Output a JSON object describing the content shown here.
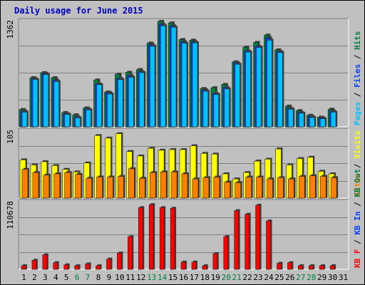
{
  "chart_data": {
    "type": "bar",
    "title": "Daily usage for June 2015",
    "categories": [
      "1",
      "2",
      "3",
      "4",
      "5",
      "6",
      "7",
      "8",
      "9",
      "10",
      "11",
      "12",
      "13",
      "14",
      "15",
      "16",
      "17",
      "18",
      "19",
      "20",
      "21",
      "22",
      "23",
      "24",
      "25",
      "26",
      "27",
      "28",
      "29",
      "30",
      "31"
    ],
    "weekend_days": [
      "6",
      "7",
      "13",
      "14",
      "20",
      "21",
      "27",
      "28"
    ],
    "panels": [
      {
        "id": "top",
        "max_label": "1362",
        "ymax": 1362,
        "right_labels": [
          {
            "text": "Hits",
            "color": "#008040"
          },
          {
            "text": " / ",
            "color": "#000000"
          },
          {
            "text": "Files",
            "color": "#0040ff"
          },
          {
            "text": " / ",
            "color": "#000000"
          },
          {
            "text": "Pages",
            "color": "#00c0ff"
          }
        ],
        "series": [
          {
            "name": "Hits",
            "color": "#008040",
            "values": [
              225,
              635,
              700,
              635,
              185,
              155,
              245,
              605,
              450,
              680,
              705,
              740,
              1082,
              1362,
              1342,
              1128,
              1120,
              495,
              505,
              548,
              840,
              1030,
              1090,
              1185,
              995,
              268,
              210,
              150,
              125,
              228,
              0
            ]
          },
          {
            "name": "Files",
            "color": "#0040ff",
            "values": [
              205,
              620,
              690,
              605,
              170,
              130,
              230,
              555,
              440,
              625,
              660,
              715,
              1060,
              1325,
              1305,
              1100,
              1100,
              478,
              430,
              510,
              825,
              980,
              1040,
              1150,
              975,
              240,
              185,
              135,
              115,
              205,
              0
            ]
          },
          {
            "name": "Pages",
            "color": "#00c0ff",
            "values": [
              190,
              612,
              675,
              585,
              160,
              115,
              218,
              545,
              425,
              610,
              640,
              700,
              1040,
              1305,
              1285,
              1080,
              1085,
              460,
              418,
              490,
              808,
              965,
              1025,
              1120,
              960,
              226,
              175,
              120,
              104,
              190,
              0
            ]
          }
        ]
      },
      {
        "id": "mid",
        "max_label": "105",
        "ymax": 105,
        "right_labels": [
          {
            "text": "Visits",
            "color": "#ffff00"
          },
          {
            "text": " / ",
            "color": "#000000"
          },
          {
            "text": "Sites",
            "color": "#ff8000"
          }
        ],
        "series": [
          {
            "name": "Visits",
            "color": "#ffff00",
            "values": [
              60,
              52,
              57,
              51,
              45,
              41,
              55,
              98,
              94,
              101,
              73,
              66,
              78,
              75,
              76,
              76,
              82,
              70,
              69,
              38,
              30,
              40,
              58,
              61,
              77,
              52,
              62,
              64,
              42,
              38,
              0
            ]
          },
          {
            "name": "Sites",
            "color": "#ff8000",
            "values": [
              45,
              40,
              36,
              38,
              40,
              37,
              31,
              33,
              33,
              34,
              46,
              31,
              40,
              41,
              41,
              38,
              30,
              32,
              33,
              25,
              24,
              33,
              33,
              30,
              32,
              30,
              34,
              35,
              34,
              32,
              0
            ]
          }
        ]
      },
      {
        "id": "bot",
        "max_label": "110678",
        "ymax": 110678,
        "right_labels": [
          {
            "text": "KB Out",
            "color": "#008040"
          },
          {
            "text": " / ",
            "color": "#000000"
          },
          {
            "text": "KB In",
            "color": "#0040ff"
          },
          {
            "text": " / ",
            "color": "#000000"
          },
          {
            "text": "KB F",
            "color": "#ff0000"
          }
        ],
        "series": [
          {
            "name": "KB F",
            "color": "#ff0000",
            "values": [
              6000,
              15000,
              24000,
              11000,
              7500,
              6000,
              9000,
              6000,
              17000,
              27000,
              54000,
              102000,
              107000,
              102000,
              101000,
              12000,
              12000,
              6000,
              26000,
              54000,
              97000,
              91000,
              106000,
              80000,
              10000,
              11000,
              6000,
              6000,
              6000,
              6000,
              0
            ]
          }
        ]
      }
    ]
  }
}
